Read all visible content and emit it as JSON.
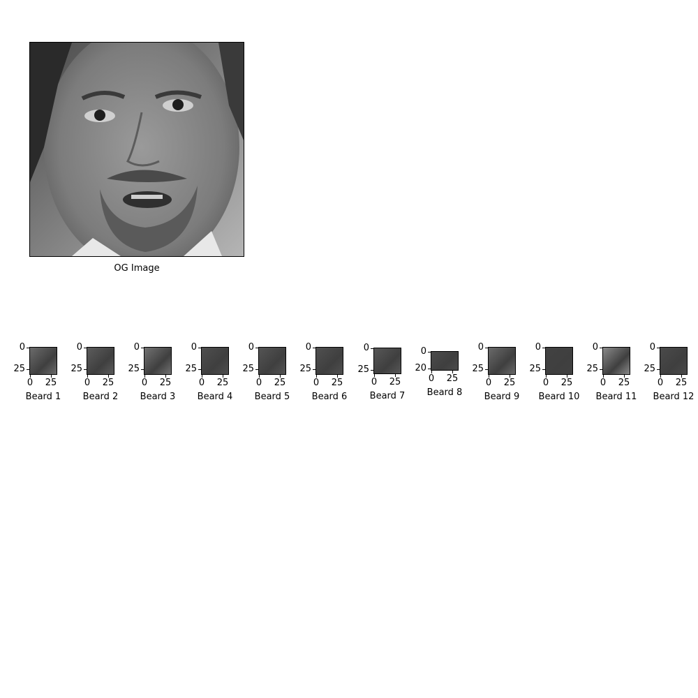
{
  "main": {
    "title": "OG Image"
  },
  "panels": [
    {
      "title": "Beard 1",
      "yticks": [
        "0",
        "25"
      ],
      "xticks": [
        "0",
        "25"
      ],
      "shade": "#6c6c6c"
    },
    {
      "title": "Beard 2",
      "yticks": [
        "0",
        "25"
      ],
      "xticks": [
        "0",
        "25"
      ],
      "shade": "#5c5c5c"
    },
    {
      "title": "Beard 3",
      "yticks": [
        "0",
        "25"
      ],
      "xticks": [
        "0",
        "25"
      ],
      "shade": "#727272"
    },
    {
      "title": "Beard 4",
      "yticks": [
        "0",
        "25"
      ],
      "xticks": [
        "0",
        "25"
      ],
      "shade": "#4e4e4e"
    },
    {
      "title": "Beard 5",
      "yticks": [
        "0",
        "25"
      ],
      "xticks": [
        "0",
        "25"
      ],
      "shade": "#545454"
    },
    {
      "title": "Beard 6",
      "yticks": [
        "0",
        "25"
      ],
      "xticks": [
        "0",
        "25"
      ],
      "shade": "#505050"
    },
    {
      "title": "Beard 7",
      "yticks": [
        "0",
        "25"
      ],
      "xticks": [
        "0",
        "25"
      ],
      "shade": "#575757"
    },
    {
      "title": "Beard 8",
      "yticks": [
        "0",
        "20"
      ],
      "xticks": [
        "0",
        "25"
      ],
      "shade": "#4b4b4b"
    },
    {
      "title": "Beard 9",
      "yticks": [
        "0",
        "25"
      ],
      "xticks": [
        "0",
        "25"
      ],
      "shade": "#6a6a6a"
    },
    {
      "title": "Beard 10",
      "yticks": [
        "0",
        "25"
      ],
      "xticks": [
        "0",
        "25"
      ],
      "shade": "#424242"
    },
    {
      "title": "Beard 11",
      "yticks": [
        "0",
        "25"
      ],
      "xticks": [
        "0",
        "25"
      ],
      "shade": "#8a8a8a"
    },
    {
      "title": "Beard 12",
      "yticks": [
        "0",
        "25"
      ],
      "xticks": [
        "0",
        "25"
      ],
      "shade": "#4a4a4a"
    }
  ]
}
